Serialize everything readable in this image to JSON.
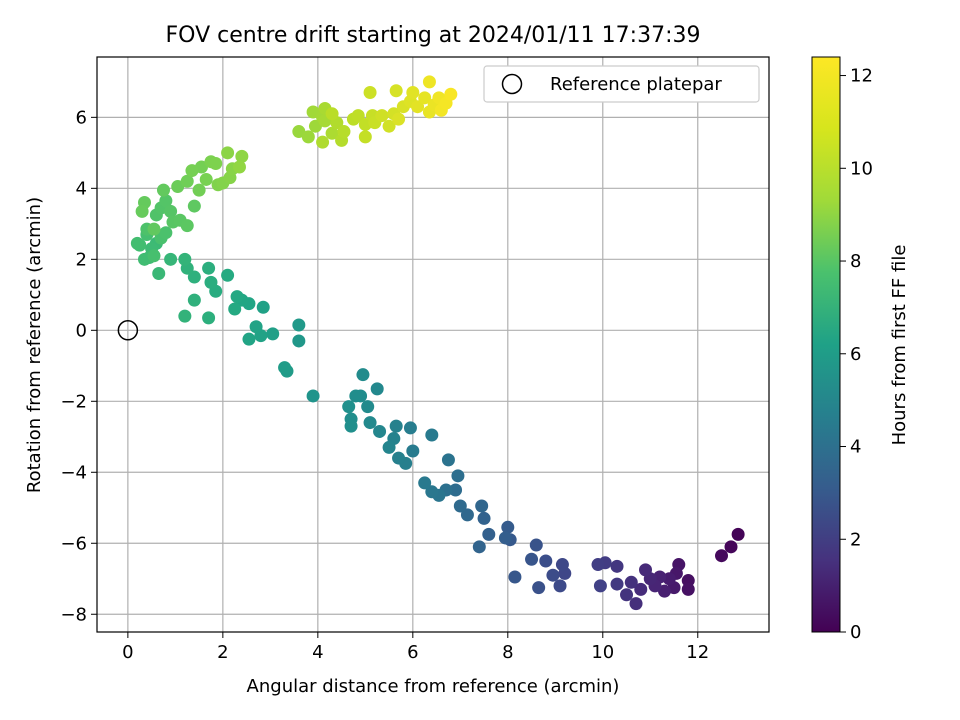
{
  "chart_data": {
    "type": "scatter",
    "title": "FOV centre drift starting at 2024/01/11 17:37:39",
    "xlabel": "Angular distance from reference (arcmin)",
    "ylabel": "Rotation from reference (arcmin)",
    "xlim": [
      -0.65,
      13.5
    ],
    "ylim": [
      -8.5,
      7.7
    ],
    "xticks": [
      0,
      2,
      4,
      6,
      8,
      10,
      12
    ],
    "xtick_labels": [
      "0",
      "2",
      "4",
      "6",
      "8",
      "10",
      "12"
    ],
    "yticks": [
      -8,
      -6,
      -4,
      -2,
      0,
      2,
      4,
      6
    ],
    "ytick_labels": [
      "−8",
      "−6",
      "−4",
      "−2",
      "0",
      "2",
      "4",
      "6"
    ],
    "grid": true,
    "legend": {
      "position": "top-right",
      "entries": [
        "Reference platepar"
      ]
    },
    "reference_point": {
      "x": 0,
      "y": 0
    },
    "colorbar": {
      "label": "Hours from first FF file",
      "colormap": "viridis",
      "range": [
        0,
        12.4
      ],
      "ticks": [
        0,
        2,
        4,
        6,
        8,
        10,
        12
      ],
      "tick_labels": [
        "0",
        "2",
        "4",
        "6",
        "8",
        "10",
        "12"
      ]
    },
    "series": [
      {
        "points": [
          [
            12.85,
            -5.75,
            0.1
          ],
          [
            12.7,
            -6.1,
            0.2
          ],
          [
            12.5,
            -6.35,
            0.3
          ],
          [
            11.8,
            -7.05,
            0.5
          ],
          [
            11.8,
            -7.3,
            0.6
          ],
          [
            11.6,
            -6.6,
            0.7
          ],
          [
            11.55,
            -6.85,
            0.8
          ],
          [
            11.5,
            -7.25,
            0.9
          ],
          [
            11.4,
            -7.0,
            1.0
          ],
          [
            11.3,
            -7.35,
            1.1
          ],
          [
            11.2,
            -6.95,
            1.2
          ],
          [
            11.1,
            -7.2,
            1.3
          ],
          [
            11.0,
            -7.0,
            1.4
          ],
          [
            10.9,
            -6.75,
            1.5
          ],
          [
            10.8,
            -7.3,
            1.6
          ],
          [
            10.7,
            -7.7,
            1.7
          ],
          [
            10.6,
            -7.1,
            1.8
          ],
          [
            10.5,
            -7.45,
            1.9
          ],
          [
            10.3,
            -6.65,
            2.0
          ],
          [
            10.3,
            -7.15,
            2.1
          ],
          [
            10.05,
            -6.55,
            2.2
          ],
          [
            9.9,
            -6.6,
            2.3
          ],
          [
            9.95,
            -7.2,
            2.4
          ],
          [
            9.2,
            -6.85,
            2.6
          ],
          [
            9.15,
            -6.6,
            2.7
          ],
          [
            9.1,
            -7.2,
            2.8
          ],
          [
            8.95,
            -6.9,
            2.9
          ],
          [
            8.8,
            -6.5,
            3.0
          ],
          [
            8.65,
            -7.25,
            3.1
          ],
          [
            8.6,
            -6.05,
            3.2
          ],
          [
            8.5,
            -6.45,
            3.3
          ],
          [
            8.15,
            -6.95,
            3.4
          ],
          [
            8.05,
            -5.9,
            3.5
          ],
          [
            8.0,
            -5.55,
            3.6
          ],
          [
            7.95,
            -5.85,
            3.7
          ],
          [
            7.6,
            -5.75,
            3.8
          ],
          [
            7.5,
            -5.3,
            3.9
          ],
          [
            7.4,
            -6.1,
            4.0
          ],
          [
            7.45,
            -4.95,
            4.1
          ],
          [
            7.15,
            -5.2,
            4.2
          ],
          [
            7.0,
            -4.95,
            4.3
          ],
          [
            6.9,
            -4.5,
            4.4
          ],
          [
            6.95,
            -4.1,
            4.5
          ],
          [
            6.7,
            -4.5,
            4.6
          ],
          [
            6.75,
            -3.65,
            4.7
          ],
          [
            6.55,
            -4.65,
            4.8
          ],
          [
            6.4,
            -4.55,
            4.9
          ],
          [
            6.25,
            -4.3,
            5.0
          ],
          [
            6.4,
            -2.95,
            5.05
          ],
          [
            6.0,
            -3.4,
            5.1
          ],
          [
            5.95,
            -2.75,
            5.2
          ],
          [
            5.85,
            -3.75,
            5.3
          ],
          [
            5.7,
            -3.6,
            5.35
          ],
          [
            5.65,
            -2.7,
            5.4
          ],
          [
            5.6,
            -3.05,
            5.5
          ],
          [
            5.5,
            -3.3,
            5.6
          ],
          [
            5.3,
            -2.85,
            5.7
          ],
          [
            5.25,
            -1.65,
            5.8
          ],
          [
            5.1,
            -2.6,
            5.85
          ],
          [
            5.05,
            -2.15,
            5.9
          ],
          [
            4.95,
            -1.25,
            5.95
          ],
          [
            4.9,
            -1.85,
            6.0
          ],
          [
            4.8,
            -1.85,
            6.05
          ],
          [
            4.7,
            -2.5,
            6.1
          ],
          [
            4.7,
            -2.7,
            6.15
          ],
          [
            4.65,
            -2.15,
            6.2
          ],
          [
            3.9,
            -1.85,
            6.4
          ],
          [
            3.6,
            -0.3,
            6.6
          ],
          [
            3.6,
            0.15,
            6.7
          ],
          [
            3.35,
            -1.15,
            6.8
          ],
          [
            3.3,
            -1.05,
            6.85
          ],
          [
            3.05,
            -0.1,
            7.0
          ],
          [
            2.85,
            0.65,
            7.1
          ],
          [
            2.8,
            -0.15,
            7.15
          ],
          [
            2.7,
            0.1,
            7.2
          ],
          [
            2.55,
            -0.25,
            7.3
          ],
          [
            2.55,
            0.75,
            7.35
          ],
          [
            2.4,
            0.85,
            7.4
          ],
          [
            2.3,
            0.95,
            7.5
          ],
          [
            2.25,
            0.6,
            7.55
          ],
          [
            2.1,
            1.55,
            7.6
          ],
          [
            1.85,
            1.1,
            7.7
          ],
          [
            1.75,
            1.35,
            7.75
          ],
          [
            1.7,
            1.75,
            7.8
          ],
          [
            1.7,
            0.35,
            7.85
          ],
          [
            1.4,
            1.5,
            7.9
          ],
          [
            1.4,
            0.85,
            7.95
          ],
          [
            1.25,
            1.75,
            8.0
          ],
          [
            1.2,
            0.4,
            8.05
          ],
          [
            1.2,
            2.0,
            8.1
          ],
          [
            0.9,
            2.0,
            8.2
          ],
          [
            0.65,
            1.6,
            8.3
          ],
          [
            0.6,
            2.45,
            8.4
          ],
          [
            0.5,
            2.3,
            8.45
          ],
          [
            0.45,
            2.05,
            8.5
          ],
          [
            0.35,
            2.0,
            8.55
          ],
          [
            0.25,
            2.4,
            8.6
          ],
          [
            0.2,
            2.45,
            8.65
          ],
          [
            0.4,
            2.7,
            8.7
          ],
          [
            0.55,
            2.1,
            8.75
          ],
          [
            0.7,
            2.6,
            8.8
          ],
          [
            0.8,
            2.75,
            8.85
          ],
          [
            0.4,
            2.85,
            8.9
          ],
          [
            0.6,
            3.25,
            8.95
          ],
          [
            0.7,
            3.45,
            9.0
          ],
          [
            0.8,
            3.65,
            9.05
          ],
          [
            0.9,
            3.35,
            9.1
          ],
          [
            0.95,
            3.05,
            9.15
          ],
          [
            1.1,
            3.1,
            9.2
          ],
          [
            1.25,
            2.95,
            9.25
          ],
          [
            1.4,
            3.5,
            9.3
          ],
          [
            0.55,
            2.85,
            9.35
          ],
          [
            0.75,
            3.95,
            9.4
          ],
          [
            0.35,
            3.6,
            9.45
          ],
          [
            0.3,
            3.35,
            9.5
          ],
          [
            1.05,
            4.05,
            9.6
          ],
          [
            1.25,
            4.2,
            9.7
          ],
          [
            1.5,
            3.95,
            9.75
          ],
          [
            1.55,
            4.6,
            9.8
          ],
          [
            1.35,
            4.5,
            9.85
          ],
          [
            1.65,
            4.25,
            9.9
          ],
          [
            1.75,
            4.75,
            9.95
          ],
          [
            1.85,
            4.7,
            10.0
          ],
          [
            1.9,
            4.1,
            10.05
          ],
          [
            2.0,
            4.15,
            10.1
          ],
          [
            2.15,
            4.3,
            10.15
          ],
          [
            2.2,
            4.55,
            10.2
          ],
          [
            2.1,
            5.0,
            10.25
          ],
          [
            2.4,
            4.9,
            10.3
          ],
          [
            2.35,
            4.6,
            10.35
          ],
          [
            3.6,
            5.6,
            10.5
          ],
          [
            3.8,
            5.45,
            10.55
          ],
          [
            3.95,
            5.75,
            10.6
          ],
          [
            3.9,
            6.15,
            10.65
          ],
          [
            4.1,
            6.0,
            10.7
          ],
          [
            4.15,
            5.9,
            10.75
          ],
          [
            4.15,
            6.25,
            10.8
          ],
          [
            4.3,
            5.55,
            10.85
          ],
          [
            4.1,
            5.3,
            10.9
          ],
          [
            4.4,
            5.85,
            10.95
          ],
          [
            4.5,
            5.35,
            11.0
          ],
          [
            4.55,
            5.6,
            11.05
          ],
          [
            4.3,
            6.1,
            11.1
          ],
          [
            4.75,
            5.95,
            11.15
          ],
          [
            4.85,
            6.05,
            11.2
          ],
          [
            5.0,
            5.8,
            11.25
          ],
          [
            5.0,
            5.45,
            11.3
          ],
          [
            5.15,
            6.05,
            11.35
          ],
          [
            5.2,
            5.85,
            11.4
          ],
          [
            5.1,
            6.7,
            11.45
          ],
          [
            5.35,
            6.05,
            11.5
          ],
          [
            5.5,
            5.75,
            11.55
          ],
          [
            5.6,
            6.1,
            11.6
          ],
          [
            5.65,
            6.75,
            11.65
          ],
          [
            5.8,
            6.3,
            11.7
          ],
          [
            5.7,
            5.95,
            11.75
          ],
          [
            5.95,
            6.45,
            11.8
          ],
          [
            6.0,
            6.7,
            11.85
          ],
          [
            6.1,
            6.3,
            11.9
          ],
          [
            6.25,
            6.55,
            11.95
          ],
          [
            6.35,
            6.15,
            12.0
          ],
          [
            6.45,
            6.35,
            12.05
          ],
          [
            6.35,
            7.0,
            12.1
          ],
          [
            6.55,
            6.55,
            12.15
          ],
          [
            6.6,
            6.2,
            12.2
          ],
          [
            6.7,
            6.4,
            12.25
          ],
          [
            6.8,
            6.65,
            12.3
          ]
        ]
      }
    ]
  }
}
